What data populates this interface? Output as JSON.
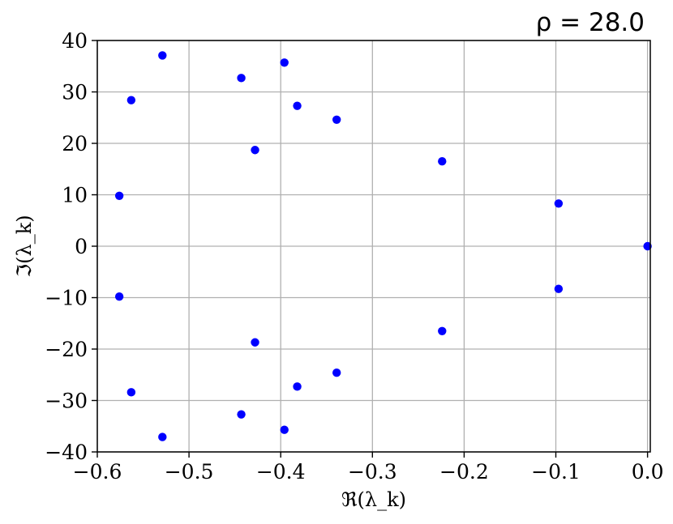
{
  "chart_data": {
    "type": "scatter",
    "title": "ρ = 28.0",
    "xlabel": "ℜ(λ_k)",
    "ylabel": "ℑ(λ_k)",
    "xlim": [
      -0.6,
      0.003
    ],
    "ylim": [
      -40,
      40
    ],
    "xticks": [
      -0.6,
      -0.5,
      -0.4,
      -0.3,
      -0.2,
      -0.1,
      0.0
    ],
    "xtick_labels": [
      "−0.6",
      "−0.5",
      "−0.4",
      "−0.3",
      "−0.2",
      "−0.1",
      "0.0"
    ],
    "yticks": [
      -40,
      -30,
      -20,
      -10,
      0,
      10,
      20,
      30,
      40
    ],
    "ytick_labels": [
      "−40",
      "−30",
      "−20",
      "−10",
      "0",
      "10",
      "20",
      "30",
      "40"
    ],
    "grid": true,
    "marker_color": "#0000ff",
    "points": [
      {
        "x": 0.0,
        "y": 0.0
      },
      {
        "x": -0.097,
        "y": 8.3
      },
      {
        "x": -0.097,
        "y": -8.3
      },
      {
        "x": -0.224,
        "y": 16.5
      },
      {
        "x": -0.224,
        "y": -16.5
      },
      {
        "x": -0.339,
        "y": 24.6
      },
      {
        "x": -0.339,
        "y": -24.6
      },
      {
        "x": -0.382,
        "y": 27.3
      },
      {
        "x": -0.382,
        "y": -27.3
      },
      {
        "x": -0.396,
        "y": 35.7
      },
      {
        "x": -0.396,
        "y": -35.7
      },
      {
        "x": -0.428,
        "y": 18.7
      },
      {
        "x": -0.428,
        "y": -18.7
      },
      {
        "x": -0.443,
        "y": 32.7
      },
      {
        "x": -0.443,
        "y": -32.7
      },
      {
        "x": -0.529,
        "y": 37.1
      },
      {
        "x": -0.529,
        "y": -37.1
      },
      {
        "x": -0.563,
        "y": 28.4
      },
      {
        "x": -0.563,
        "y": -28.4
      },
      {
        "x": -0.576,
        "y": 9.8
      },
      {
        "x": -0.576,
        "y": -9.8
      }
    ]
  }
}
